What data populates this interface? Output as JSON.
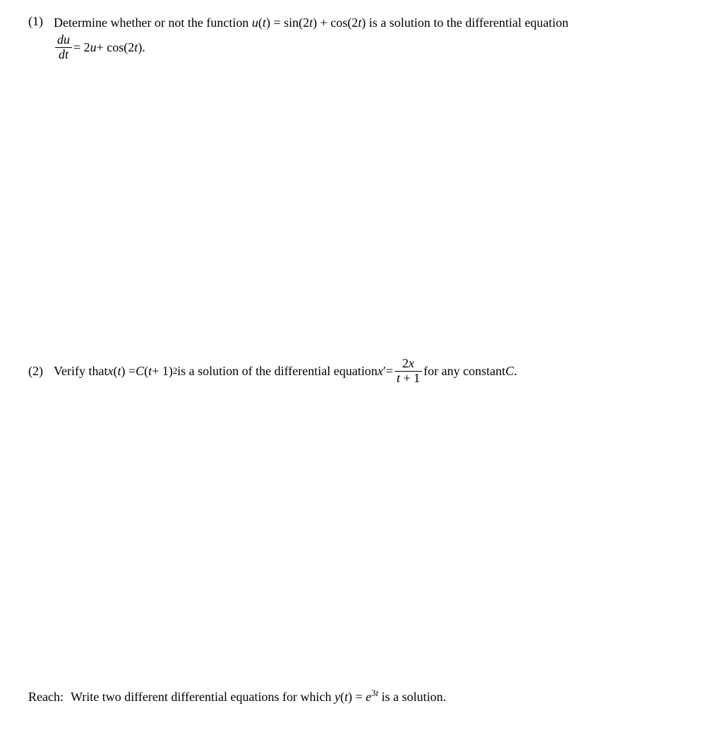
{
  "p1": {
    "number": "(1)",
    "line1_a": "Determine whether or not the function ",
    "line1_u": "u",
    "line1_b": "(",
    "line1_t1": "t",
    "line1_c": ") = sin(2",
    "line1_t2": "t",
    "line1_d": ") + cos(2",
    "line1_t3": "t",
    "line1_e": ") is a solution to the differential equation",
    "frac_num_d": "d",
    "frac_num_u": "u",
    "frac_den_d": "d",
    "frac_den_t": "t",
    "eq_a": " = 2",
    "eq_u": "u",
    "eq_b": " + cos(2",
    "eq_t": "t",
    "eq_c": ")."
  },
  "p2": {
    "number": "(2)",
    "a": "Verify that ",
    "x1": "x",
    "b": "(",
    "t1": "t",
    "c": ") = ",
    "C": "C",
    "d": "(",
    "t2": "t",
    "e": " + 1)",
    "exp2": "2",
    "f": " is a solution of the differential equation ",
    "x2": "x",
    "prime": "′",
    "g": " = ",
    "frac_num_2": "2",
    "frac_num_x": "x",
    "frac_den_t": "t",
    "frac_den_plus1": " + 1",
    "h": " for any constant ",
    "C2": "C",
    "i": "."
  },
  "reach": {
    "label": "Reach:",
    "a": "Write two different differential equations for which ",
    "y": "y",
    "b": "(",
    "t": "t",
    "c": ") = ",
    "e": "e",
    "exp3": "3",
    "expt": "t",
    "d": " is a solution."
  }
}
